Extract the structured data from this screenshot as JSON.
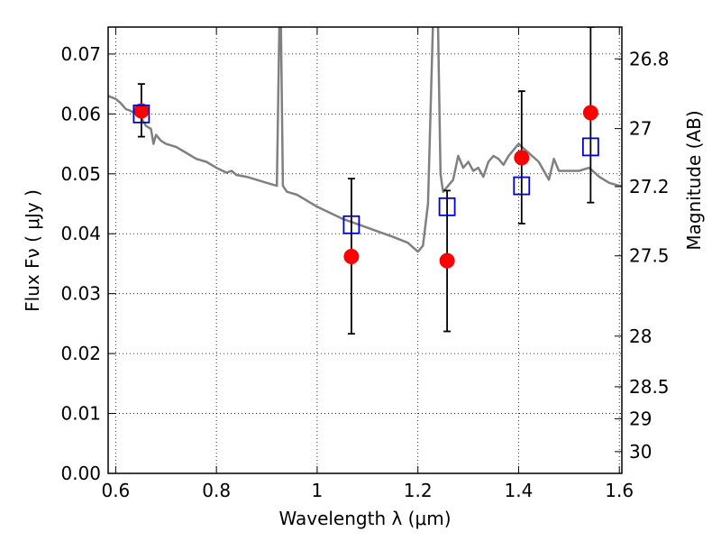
{
  "chart_data": {
    "type": "scatter",
    "xlabel": "Wavelength  λ (μm)",
    "ylabel": "Flux  Fν  ( μJy )",
    "ylabel_right": "Magnitude (AB)",
    "xlim": [
      0.585,
      1.605
    ],
    "ylim": [
      0.0,
      0.0745
    ],
    "grid": true,
    "x_ticks": [
      0.6,
      0.8,
      1.0,
      1.2,
      1.4,
      1.6
    ],
    "x_tick_labels": [
      "0.6",
      "0.8",
      "1",
      "1.2",
      "1.4",
      "1.6"
    ],
    "y_ticks": [
      0.0,
      0.01,
      0.02,
      0.03,
      0.04,
      0.05,
      0.06,
      0.07
    ],
    "y_tick_labels": [
      "0.00",
      "0.01",
      "0.02",
      "0.03",
      "0.04",
      "0.05",
      "0.06",
      "0.07"
    ],
    "mag_ticks": [
      26.8,
      27,
      27.2,
      27.5,
      28,
      28.5,
      29,
      30
    ],
    "mag_tick_labels": [
      "26.8",
      "27",
      "27.2",
      "27.5",
      "28",
      "28.5",
      "29",
      "30"
    ],
    "series": [
      {
        "kind": "line",
        "color": "#808080",
        "x": [
          0.585,
          0.6,
          0.61,
          0.62,
          0.63,
          0.64,
          0.65,
          0.66,
          0.67,
          0.675,
          0.68,
          0.69,
          0.7,
          0.72,
          0.74,
          0.76,
          0.78,
          0.8,
          0.82,
          0.83,
          0.84,
          0.86,
          0.88,
          0.9,
          0.92,
          0.925,
          0.928,
          0.932,
          0.94,
          0.96,
          1.0,
          1.05,
          1.1,
          1.15,
          1.18,
          1.2,
          1.21,
          1.22,
          1.23,
          1.235,
          1.24,
          1.245,
          1.25,
          1.26,
          1.27,
          1.28,
          1.29,
          1.3,
          1.31,
          1.32,
          1.33,
          1.34,
          1.35,
          1.36,
          1.37,
          1.38,
          1.39,
          1.4,
          1.42,
          1.44,
          1.46,
          1.47,
          1.48,
          1.5,
          1.52,
          1.54,
          1.56,
          1.58,
          1.6,
          1.605
        ],
        "y": [
          0.063,
          0.0625,
          0.0618,
          0.0608,
          0.0605,
          0.06,
          0.0595,
          0.058,
          0.0575,
          0.055,
          0.0565,
          0.0555,
          0.055,
          0.0545,
          0.0535,
          0.0525,
          0.052,
          0.051,
          0.0502,
          0.0505,
          0.0498,
          0.0495,
          0.049,
          0.0485,
          0.048,
          0.075,
          0.075,
          0.048,
          0.047,
          0.0465,
          0.0445,
          0.0425,
          0.041,
          0.0395,
          0.0385,
          0.037,
          0.038,
          0.045,
          0.075,
          0.075,
          0.075,
          0.05,
          0.047,
          0.048,
          0.049,
          0.053,
          0.051,
          0.052,
          0.0505,
          0.051,
          0.0495,
          0.052,
          0.053,
          0.0525,
          0.0515,
          0.053,
          0.054,
          0.055,
          0.0535,
          0.052,
          0.049,
          0.0525,
          0.0505,
          0.0505,
          0.0505,
          0.051,
          0.0495,
          0.0485,
          0.048,
          0.048
        ]
      },
      {
        "kind": "model_photometry",
        "marker": "square",
        "color": "#0000cc",
        "x": [
          0.651,
          1.068,
          1.258,
          1.406,
          1.543
        ],
        "y": [
          0.06,
          0.0415,
          0.0445,
          0.048,
          0.0545
        ]
      },
      {
        "kind": "observed",
        "marker": "circle",
        "color": "#ff0000",
        "x": [
          0.651,
          1.068,
          1.258,
          1.406,
          1.543
        ],
        "y": [
          0.0605,
          0.0362,
          0.0355,
          0.0527,
          0.0602
        ],
        "yerr": [
          [
            0.0562,
            0.065
          ],
          [
            0.0233,
            0.0492
          ],
          [
            0.0237,
            0.0472
          ],
          [
            0.0417,
            0.0638
          ],
          [
            0.0452,
            0.0745
          ]
        ]
      }
    ]
  }
}
